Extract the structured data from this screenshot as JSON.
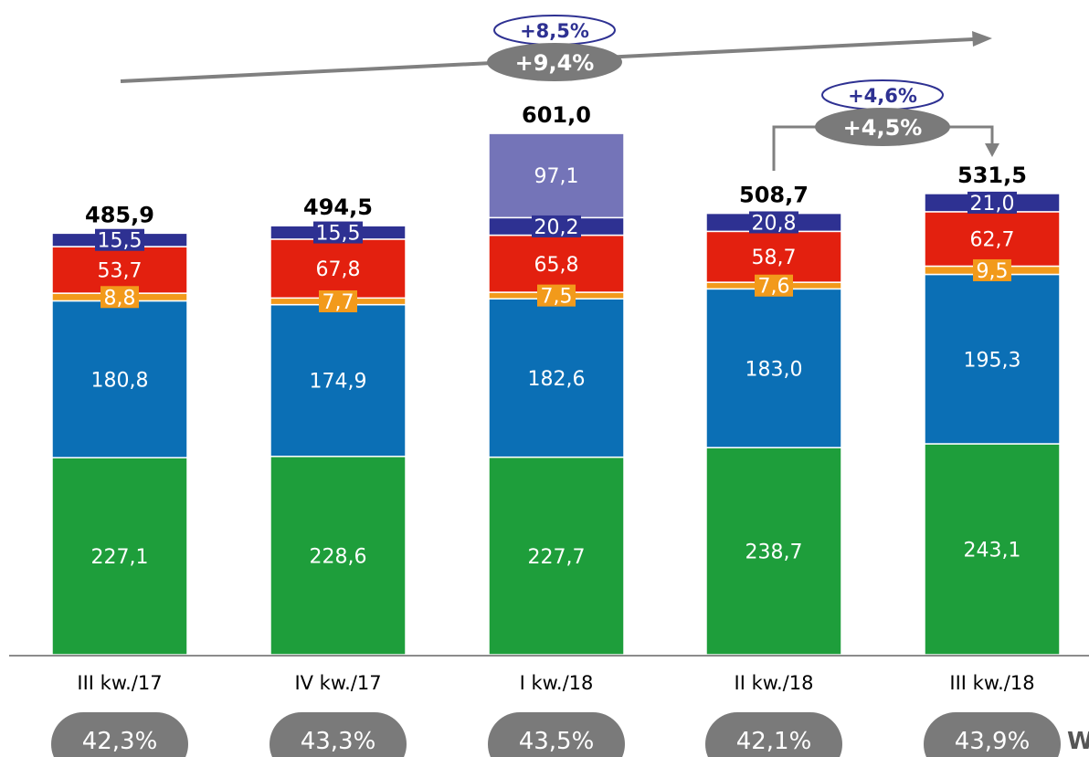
{
  "chart_data": {
    "type": "bar",
    "stacked": true,
    "categories": [
      "III kw./17",
      "IV kw./17",
      "I kw./18",
      "II kw./18",
      "III kw./18"
    ],
    "series": [
      {
        "values": [
          227.1,
          228.6,
          227.7,
          238.7,
          243.1
        ],
        "labels": [
          "227,1",
          "228,6",
          "227,7",
          "238,7",
          "243,1"
        ],
        "color": "#1e9e3b",
        "label_style": "plain"
      },
      {
        "values": [
          180.8,
          174.9,
          182.6,
          183.0,
          195.3
        ],
        "labels": [
          "180,8",
          "174,9",
          "182,6",
          "183,0",
          "195,3"
        ],
        "color": "#0b6fb5",
        "label_style": "plain"
      },
      {
        "values": [
          8.8,
          7.7,
          7.5,
          7.6,
          9.5
        ],
        "labels": [
          "8,8",
          "7,7",
          "7,5",
          "7,6",
          "9,5"
        ],
        "color": "#f29a1b",
        "label_style": "boxed"
      },
      {
        "values": [
          53.7,
          67.8,
          65.8,
          58.7,
          62.7
        ],
        "labels": [
          "53,7",
          "67,8",
          "65,8",
          "58,7",
          "62,7"
        ],
        "color": "#e3200f",
        "label_style": "plain"
      },
      {
        "values": [
          15.5,
          15.5,
          20.2,
          20.8,
          21.0
        ],
        "labels": [
          "15,5",
          "15,5",
          "20,2",
          "20,8",
          "21,0"
        ],
        "color": "#2e3192",
        "label_style": "boxed"
      },
      {
        "values": [
          0,
          0,
          97.1,
          0,
          0
        ],
        "labels": [
          "",
          "",
          "97,1",
          "",
          ""
        ],
        "color": "#7474b8",
        "label_style": "plain"
      }
    ],
    "totals": [
      485.9,
      494.5,
      601.0,
      508.7,
      531.5
    ],
    "total_labels": [
      "485,9",
      "494,5",
      "601,0",
      "508,7",
      "531,5"
    ],
    "bottom_badges": [
      "42,3%",
      "43,3%",
      "43,5%",
      "42,1%",
      "43,9%"
    ],
    "trend_long": {
      "outline_label": "+8,5%",
      "filled_label": "+9,4%"
    },
    "trend_short": {
      "outline_label": "+4,6%",
      "filled_label": "+4,5%"
    },
    "truncated_text": "W",
    "ylim": [
      0,
      601.0
    ],
    "grid": false,
    "colors": {
      "axis": "#8c8c8c",
      "badge": "#7a7a7a",
      "outline_text": "#2e3192",
      "arrow": "#808080"
    }
  }
}
